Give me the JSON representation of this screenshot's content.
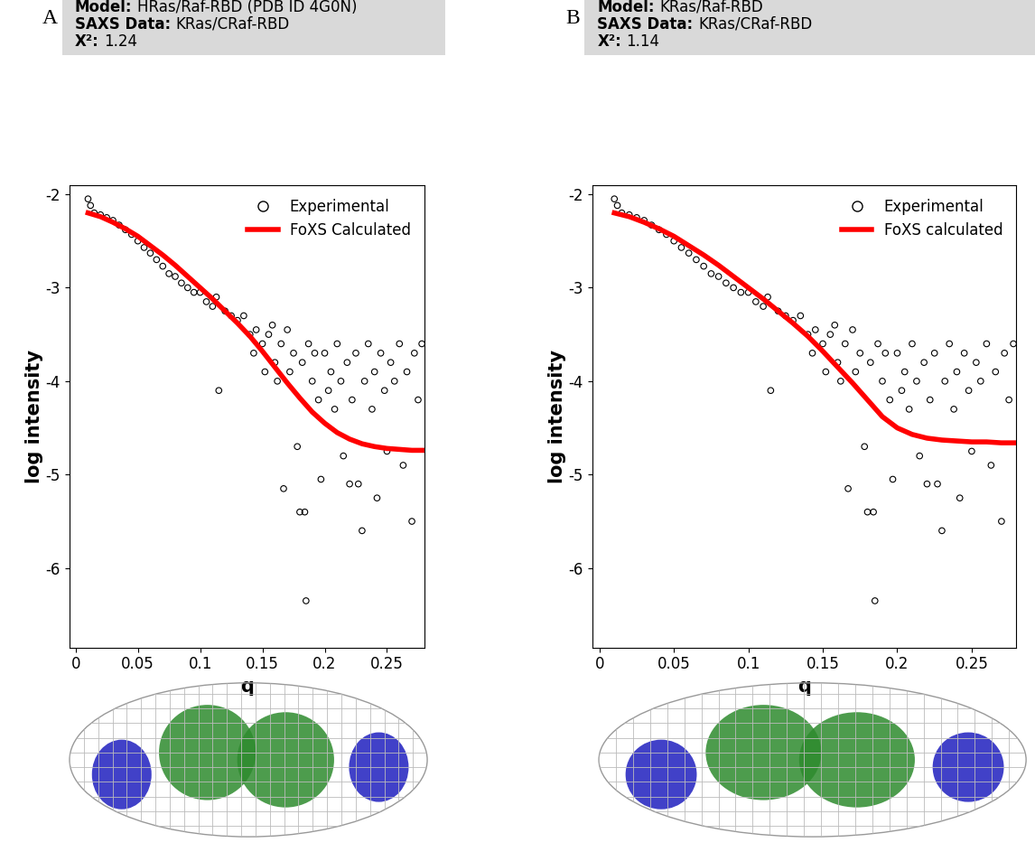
{
  "chart_data": [
    {
      "type": "scatter",
      "panel": "A",
      "header": [
        {
          "label": "Model:",
          "text": "HRas/Raf-RBD (PDB ID 4G0N)"
        },
        {
          "label": "SAXS Data:",
          "text": "KRas/CRaf-RBD"
        },
        {
          "label": "X²:",
          "value": 1.24
        }
      ],
      "x_label": "q",
      "y_label": "log intensity",
      "xlim": [
        -0.005,
        0.28
      ],
      "ylim": [
        -6.85,
        -1.9
      ],
      "xticks": [
        0,
        0.05,
        0.1,
        0.15,
        0.2,
        0.25
      ],
      "yticks": [
        -2,
        -3,
        -4,
        -5,
        -6
      ],
      "legend": "upper right",
      "series": [
        {
          "name": "Experimental",
          "type": "scatter",
          "marker": "o",
          "color": "#000000",
          "x": [
            0.01,
            0.012,
            0.015,
            0.02,
            0.025,
            0.03,
            0.035,
            0.04,
            0.045,
            0.05,
            0.055,
            0.06,
            0.065,
            0.07,
            0.075,
            0.08,
            0.085,
            0.09,
            0.095,
            0.1,
            0.105,
            0.11,
            0.113,
            0.115,
            0.12,
            0.125,
            0.13,
            0.135,
            0.14,
            0.143,
            0.145,
            0.15,
            0.152,
            0.155,
            0.158,
            0.16,
            0.162,
            0.165,
            0.167,
            0.17,
            0.172,
            0.175,
            0.178,
            0.18,
            0.182,
            0.184,
            0.185,
            0.187,
            0.19,
            0.192,
            0.195,
            0.197,
            0.2,
            0.203,
            0.205,
            0.208,
            0.21,
            0.213,
            0.215,
            0.218,
            0.22,
            0.222,
            0.225,
            0.227,
            0.23,
            0.232,
            0.235,
            0.238,
            0.24,
            0.242,
            0.245,
            0.248,
            0.25,
            0.253,
            0.256,
            0.26,
            0.263,
            0.266,
            0.27,
            0.272,
            0.275,
            0.278
          ],
          "values": [
            -2.05,
            -2.12,
            -2.2,
            -2.22,
            -2.25,
            -2.28,
            -2.33,
            -2.38,
            -2.43,
            -2.5,
            -2.57,
            -2.63,
            -2.7,
            -2.77,
            -2.85,
            -2.88,
            -2.95,
            -3.0,
            -3.05,
            -3.05,
            -3.15,
            -3.2,
            -3.1,
            -4.1,
            -3.25,
            -3.3,
            -3.35,
            -3.3,
            -3.5,
            -3.7,
            -3.45,
            -3.6,
            -3.9,
            -3.5,
            -3.4,
            -3.8,
            -4.0,
            -3.6,
            -5.15,
            -3.45,
            -3.9,
            -3.7,
            -4.7,
            -5.4,
            -3.8,
            -5.4,
            -6.35,
            -3.6,
            -4.0,
            -3.7,
            -4.2,
            -5.05,
            -3.7,
            -4.1,
            -3.9,
            -4.3,
            -3.6,
            -4.0,
            -4.8,
            -3.8,
            -5.1,
            -4.2,
            -3.7,
            -5.1,
            -5.6,
            -4.0,
            -3.6,
            -4.3,
            -3.9,
            -5.25,
            -3.7,
            -4.1,
            -4.75,
            -3.8,
            -4.0,
            -3.6,
            -4.9,
            -3.9,
            -5.5,
            -3.7,
            -4.2,
            -3.6
          ]
        },
        {
          "name": "FoXS Calculated",
          "type": "line",
          "line_style": "solid",
          "color": "#ff0000",
          "x": [
            0.01,
            0.02,
            0.03,
            0.04,
            0.05,
            0.06,
            0.07,
            0.08,
            0.09,
            0.1,
            0.11,
            0.12,
            0.13,
            0.14,
            0.15,
            0.16,
            0.17,
            0.18,
            0.19,
            0.2,
            0.21,
            0.22,
            0.23,
            0.24,
            0.25,
            0.26,
            0.27,
            0.28
          ],
          "values": [
            -2.2,
            -2.24,
            -2.3,
            -2.37,
            -2.45,
            -2.55,
            -2.65,
            -2.76,
            -2.88,
            -3.0,
            -3.12,
            -3.25,
            -3.38,
            -3.52,
            -3.68,
            -3.85,
            -4.02,
            -4.18,
            -4.33,
            -4.45,
            -4.55,
            -4.62,
            -4.67,
            -4.7,
            -4.72,
            -4.73,
            -4.74,
            -4.74
          ]
        }
      ]
    },
    {
      "type": "scatter",
      "panel": "B",
      "header": [
        {
          "label": "Model:",
          "text": "KRas/Raf-RBD"
        },
        {
          "label": "SAXS Data:",
          "text": "KRas/CRaf-RBD"
        },
        {
          "label": "X²:",
          "value": 1.14
        }
      ],
      "x_label": "q",
      "y_label": "log intensity",
      "xlim": [
        -0.005,
        0.28
      ],
      "ylim": [
        -6.85,
        -1.9
      ],
      "xticks": [
        0,
        0.05,
        0.1,
        0.15,
        0.2,
        0.25
      ],
      "yticks": [
        -2,
        -3,
        -4,
        -5,
        -6
      ],
      "legend": "upper right",
      "series": [
        {
          "name": "Experimental",
          "type": "scatter",
          "marker": "o",
          "color": "#000000",
          "x": [
            0.01,
            0.012,
            0.015,
            0.02,
            0.025,
            0.03,
            0.035,
            0.04,
            0.045,
            0.05,
            0.055,
            0.06,
            0.065,
            0.07,
            0.075,
            0.08,
            0.085,
            0.09,
            0.095,
            0.1,
            0.105,
            0.11,
            0.113,
            0.115,
            0.12,
            0.125,
            0.13,
            0.135,
            0.14,
            0.143,
            0.145,
            0.15,
            0.152,
            0.155,
            0.158,
            0.16,
            0.162,
            0.165,
            0.167,
            0.17,
            0.172,
            0.175,
            0.178,
            0.18,
            0.182,
            0.184,
            0.185,
            0.187,
            0.19,
            0.192,
            0.195,
            0.197,
            0.2,
            0.203,
            0.205,
            0.208,
            0.21,
            0.213,
            0.215,
            0.218,
            0.22,
            0.222,
            0.225,
            0.227,
            0.23,
            0.232,
            0.235,
            0.238,
            0.24,
            0.242,
            0.245,
            0.248,
            0.25,
            0.253,
            0.256,
            0.26,
            0.263,
            0.266,
            0.27,
            0.272,
            0.275,
            0.278
          ],
          "values": [
            -2.05,
            -2.12,
            -2.2,
            -2.22,
            -2.25,
            -2.28,
            -2.33,
            -2.38,
            -2.43,
            -2.5,
            -2.57,
            -2.63,
            -2.7,
            -2.77,
            -2.85,
            -2.88,
            -2.95,
            -3.0,
            -3.05,
            -3.05,
            -3.15,
            -3.2,
            -3.1,
            -4.1,
            -3.25,
            -3.3,
            -3.35,
            -3.3,
            -3.5,
            -3.7,
            -3.45,
            -3.6,
            -3.9,
            -3.5,
            -3.4,
            -3.8,
            -4.0,
            -3.6,
            -5.15,
            -3.45,
            -3.9,
            -3.7,
            -4.7,
            -5.4,
            -3.8,
            -5.4,
            -6.35,
            -3.6,
            -4.0,
            -3.7,
            -4.2,
            -5.05,
            -3.7,
            -4.1,
            -3.9,
            -4.3,
            -3.6,
            -4.0,
            -4.8,
            -3.8,
            -5.1,
            -4.2,
            -3.7,
            -5.1,
            -5.6,
            -4.0,
            -3.6,
            -4.3,
            -3.9,
            -5.25,
            -3.7,
            -4.1,
            -4.75,
            -3.8,
            -4.0,
            -3.6,
            -4.9,
            -3.9,
            -5.5,
            -3.7,
            -4.2,
            -3.6
          ]
        },
        {
          "name": "FoXS calculated",
          "type": "line",
          "line_style": "solid",
          "color": "#ff0000",
          "x": [
            0.01,
            0.02,
            0.03,
            0.04,
            0.05,
            0.06,
            0.07,
            0.08,
            0.09,
            0.1,
            0.11,
            0.12,
            0.13,
            0.14,
            0.15,
            0.16,
            0.17,
            0.18,
            0.19,
            0.2,
            0.21,
            0.22,
            0.23,
            0.24,
            0.25,
            0.26,
            0.27,
            0.28
          ],
          "values": [
            -2.2,
            -2.24,
            -2.3,
            -2.37,
            -2.45,
            -2.55,
            -2.65,
            -2.76,
            -2.88,
            -3.0,
            -3.12,
            -3.25,
            -3.38,
            -3.52,
            -3.68,
            -3.85,
            -4.02,
            -4.2,
            -4.38,
            -4.5,
            -4.57,
            -4.61,
            -4.63,
            -4.64,
            -4.65,
            -4.65,
            -4.66,
            -4.66
          ]
        }
      ]
    }
  ]
}
